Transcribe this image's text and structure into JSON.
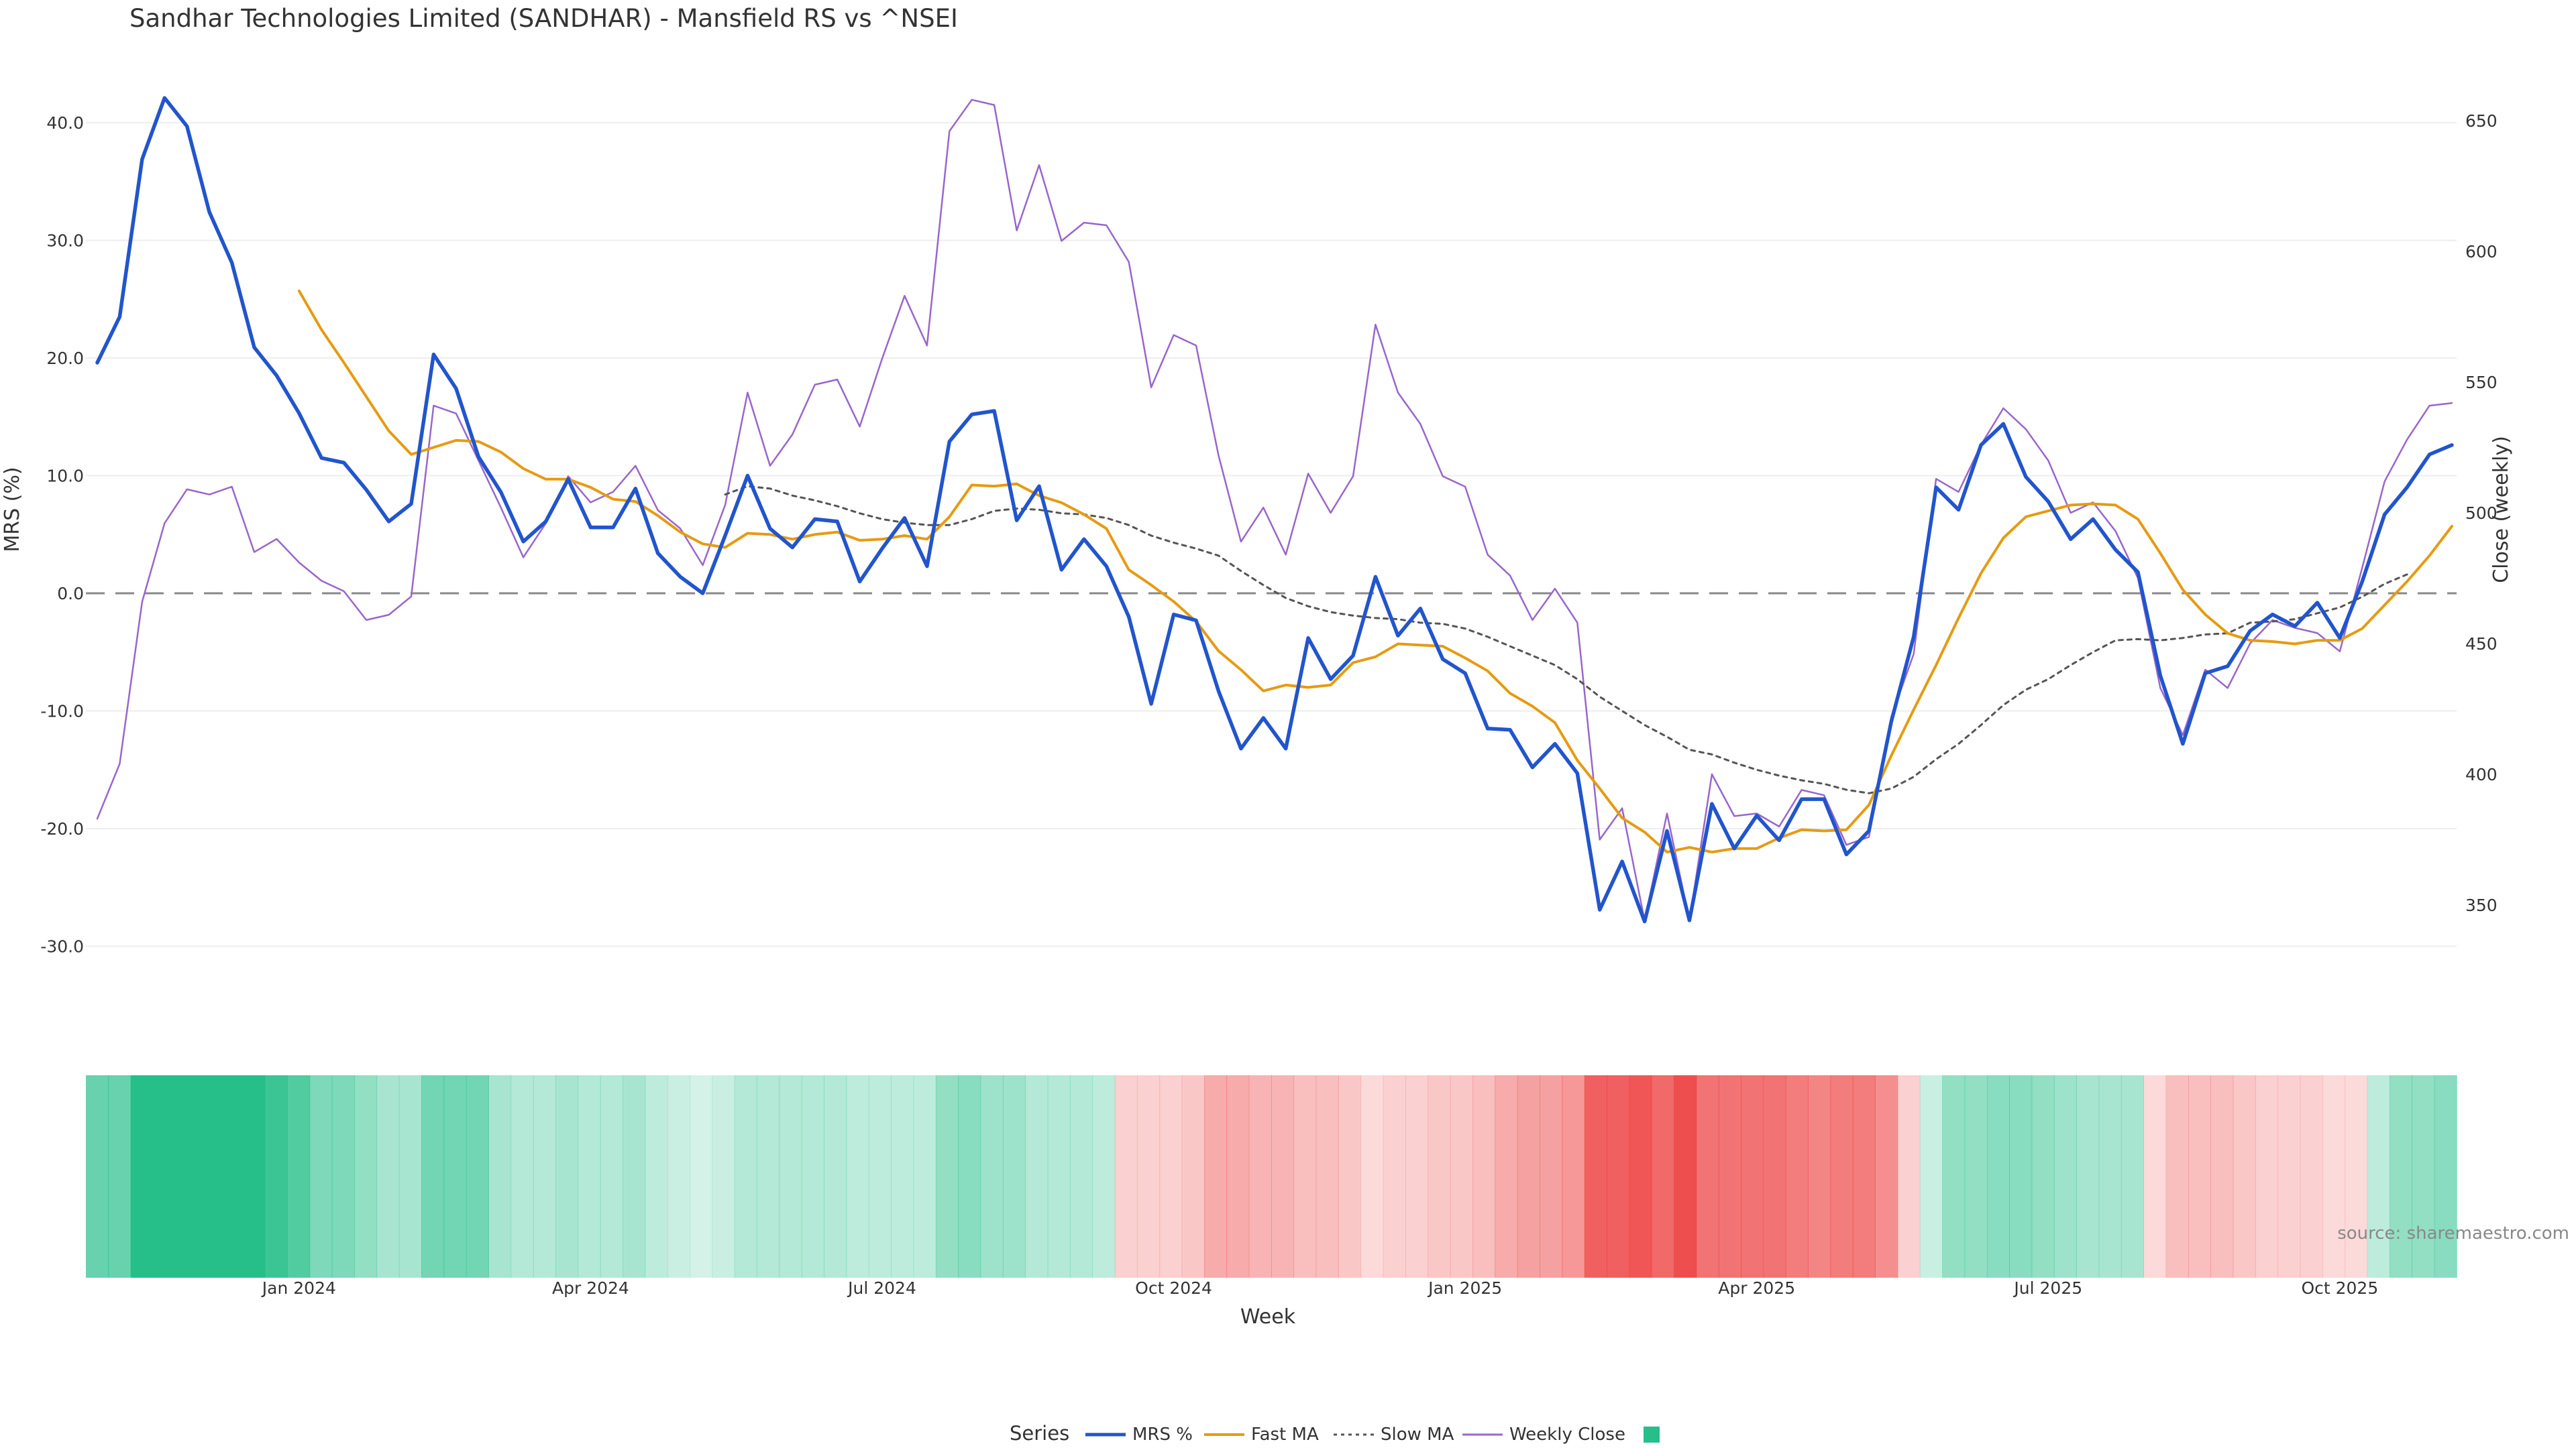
{
  "colors": {
    "mrs": "#2255cc",
    "fast": "#e59b12",
    "slow": "#555555",
    "close": "#9966cc",
    "zero": "#888888",
    "grid": "#eeeeee",
    "pos": "#26bf8a",
    "neg": "#ee4444"
  },
  "chart_data": {
    "type": "line",
    "title": "Sandhar Technologies Limited (SANDHAR) - Mansfield RS vs ^NSEI",
    "xlabel": "Week",
    "ylabel_left": "MRS (%)",
    "ylabel_right": "Close (weekly)",
    "source": "source: sharemaestro.com",
    "ylim_left": [
      -30,
      40
    ],
    "ylim_right": [
      350,
      650
    ],
    "left_ticks": [
      "40.0",
      "30.0",
      "20.0",
      "10.0",
      "0.0",
      "-10.0",
      "-20.0",
      "-30.0"
    ],
    "right_ticks": [
      "650",
      "600",
      "550",
      "500",
      "450",
      "400",
      "350"
    ],
    "x_ticks": [
      {
        "label": "Jan 2024",
        "week": 9
      },
      {
        "label": "Apr 2024",
        "week": 22
      },
      {
        "label": "Jul 2024",
        "week": 35
      },
      {
        "label": "Oct 2024",
        "week": 48
      },
      {
        "label": "Jan 2025",
        "week": 61
      },
      {
        "label": "Apr 2025",
        "week": 74
      },
      {
        "label": "Jul 2025",
        "week": 87
      },
      {
        "label": "Oct 2025",
        "week": 100
      }
    ],
    "legend": {
      "title": "Series",
      "entries": [
        "MRS %",
        "Fast MA",
        "Slow MA",
        "Weekly Close",
        ""
      ]
    },
    "series": [
      {
        "name": "MRS %",
        "key": "mrs",
        "axis": "left",
        "start": 0,
        "values": [
          19.6,
          23.5,
          36.9,
          42.1,
          39.7,
          32.4,
          28.1,
          20.9,
          18.5,
          15.3,
          11.5,
          11.1,
          8.8,
          6.1,
          7.6,
          20.3,
          17.4,
          11.6,
          8.6,
          4.4,
          6.1,
          9.7,
          5.6,
          5.6,
          8.9,
          3.4,
          1.4,
          0.0,
          4.9,
          10.0,
          5.5,
          3.9,
          6.3,
          6.1,
          1.0,
          3.8,
          6.4,
          2.3,
          12.9,
          15.2,
          15.5,
          6.2,
          9.1,
          2.0,
          4.6,
          2.3,
          -2.0,
          -9.4,
          -1.8,
          -2.3,
          -8.3,
          -13.2,
          -10.6,
          -13.2,
          -3.8,
          -7.3,
          -5.3,
          1.4,
          -3.6,
          -1.3,
          -5.6,
          -6.8,
          -11.5,
          -11.6,
          -14.8,
          -12.8,
          -15.3,
          -26.9,
          -22.8,
          -27.9,
          -20.2,
          -27.8,
          -17.9,
          -21.7,
          -18.9,
          -21.0,
          -17.5,
          -17.5,
          -22.2,
          -20.2,
          -10.9,
          -3.7,
          9.0,
          7.1,
          12.6,
          14.4,
          9.9,
          7.8,
          4.6,
          6.3,
          3.7,
          1.8,
          -7.0,
          -12.8,
          -6.8,
          -6.2,
          -3.2,
          -1.8,
          -2.8,
          -0.8,
          -3.8,
          1.0,
          6.7,
          9.0,
          11.8,
          12.6
        ]
      },
      {
        "name": "Fast MA",
        "key": "fast",
        "axis": "left",
        "start": 9,
        "values": [
          25.7,
          22.4,
          19.6,
          16.7,
          13.8,
          11.8,
          12.4,
          13.0,
          12.9,
          12.0,
          10.6,
          9.7,
          9.7,
          9.0,
          8.0,
          7.8,
          6.6,
          5.2,
          4.2,
          3.9,
          5.1,
          5.0,
          4.6,
          5.0,
          5.2,
          4.5,
          4.6,
          4.9,
          4.6,
          6.5,
          9.2,
          9.1,
          9.3,
          8.3,
          7.7,
          6.7,
          5.5,
          2.0,
          0.7,
          -0.7,
          -2.4,
          -4.9,
          -6.5,
          -8.3,
          -7.8,
          -8.0,
          -7.8,
          -5.9,
          -5.4,
          -4.3,
          -4.4,
          -4.5,
          -5.5,
          -6.6,
          -8.5,
          -9.6,
          -11.0,
          -14.2,
          -16.6,
          -19.1,
          -20.3,
          -22.0,
          -21.6,
          -22.0,
          -21.7,
          -21.7,
          -20.8,
          -20.1,
          -20.2,
          -20.1,
          -18.0,
          -13.8,
          -9.9,
          -6.1,
          -2.1,
          1.7,
          4.7,
          6.5,
          7.0,
          7.5,
          7.6,
          7.5,
          6.3,
          3.4,
          0.3,
          -1.8,
          -3.4,
          -4.0,
          -4.1,
          -4.3,
          -4.0,
          -4.0,
          -3.0,
          -1.0,
          1.0,
          3.2,
          5.7
        ]
      },
      {
        "name": "Slow MA",
        "key": "slow",
        "axis": "left",
        "start": 28,
        "values": [
          8.4,
          9.1,
          8.9,
          8.3,
          7.9,
          7.4,
          6.8,
          6.3,
          6.0,
          5.8,
          5.8,
          6.3,
          7.0,
          7.2,
          7.1,
          6.8,
          6.7,
          6.4,
          5.8,
          4.9,
          4.3,
          3.8,
          3.2,
          1.9,
          0.7,
          -0.4,
          -1.1,
          -1.6,
          -1.9,
          -2.1,
          -2.2,
          -2.5,
          -2.6,
          -3.0,
          -3.7,
          -4.5,
          -5.3,
          -6.1,
          -7.3,
          -8.8,
          -10.0,
          -11.2,
          -12.2,
          -13.3,
          -13.7,
          -14.4,
          -15.0,
          -15.5,
          -15.9,
          -16.2,
          -16.7,
          -17.0,
          -16.6,
          -15.6,
          -14.1,
          -12.8,
          -11.2,
          -9.5,
          -8.2,
          -7.3,
          -6.1,
          -5.0,
          -4.0,
          -3.9,
          -4.0,
          -3.8,
          -3.5,
          -3.4,
          -2.5,
          -2.4,
          -2.2,
          -1.7,
          -1.2,
          -0.3,
          0.8,
          1.6
        ]
      },
      {
        "name": "Weekly Close",
        "key": "close",
        "axis": "right",
        "start": 0,
        "values": [
          383,
          404,
          466,
          496,
          509,
          507,
          510,
          485,
          490,
          481,
          474,
          470,
          459,
          461,
          468,
          541,
          538,
          520,
          502,
          483,
          496,
          514,
          504,
          508,
          518,
          501,
          494,
          480,
          503,
          546,
          518,
          530,
          549,
          551,
          533,
          559,
          583,
          564,
          646,
          658,
          656,
          608,
          633,
          604,
          611,
          610,
          596,
          548,
          568,
          564,
          522,
          489,
          502,
          484,
          515,
          500,
          514,
          572,
          546,
          534,
          514,
          510,
          484,
          476,
          459,
          471,
          458,
          375,
          387,
          344,
          385,
          344,
          400,
          384,
          385,
          380,
          394,
          392,
          373,
          376,
          422,
          446,
          513,
          508,
          526,
          540,
          532,
          520,
          500,
          504,
          493,
          475,
          433,
          415,
          440,
          433,
          450,
          459,
          456,
          454,
          447,
          479,
          512,
          528,
          541,
          542
        ]
      }
    ],
    "heatmap_band": [
      0.7,
      0.7,
      1.0,
      1.0,
      1.0,
      1.0,
      1.0,
      1.0,
      0.9,
      0.8,
      0.6,
      0.6,
      0.5,
      0.4,
      0.4,
      0.65,
      0.65,
      0.65,
      0.4,
      0.35,
      0.35,
      0.4,
      0.35,
      0.35,
      0.4,
      0.3,
      0.25,
      0.2,
      0.25,
      0.35,
      0.35,
      0.35,
      0.35,
      0.35,
      0.3,
      0.3,
      0.3,
      0.3,
      0.5,
      0.55,
      0.45,
      0.45,
      0.35,
      0.35,
      0.35,
      0.3,
      -0.25,
      -0.25,
      -0.25,
      -0.3,
      -0.45,
      -0.45,
      -0.4,
      -0.4,
      -0.35,
      -0.35,
      -0.3,
      -0.2,
      -0.25,
      -0.25,
      -0.3,
      -0.3,
      -0.35,
      -0.45,
      -0.5,
      -0.5,
      -0.55,
      -0.85,
      -0.85,
      -0.9,
      -0.8,
      -0.95,
      -0.75,
      -0.75,
      -0.75,
      -0.75,
      -0.7,
      -0.65,
      -0.7,
      -0.7,
      -0.6,
      -0.25,
      0.25,
      0.5,
      0.5,
      0.55,
      0.55,
      0.5,
      0.45,
      0.4,
      0.4,
      0.4,
      -0.2,
      -0.35,
      -0.35,
      -0.35,
      -0.3,
      -0.25,
      -0.25,
      -0.25,
      -0.2,
      -0.2,
      0.3,
      0.5,
      0.5,
      0.55
    ]
  }
}
